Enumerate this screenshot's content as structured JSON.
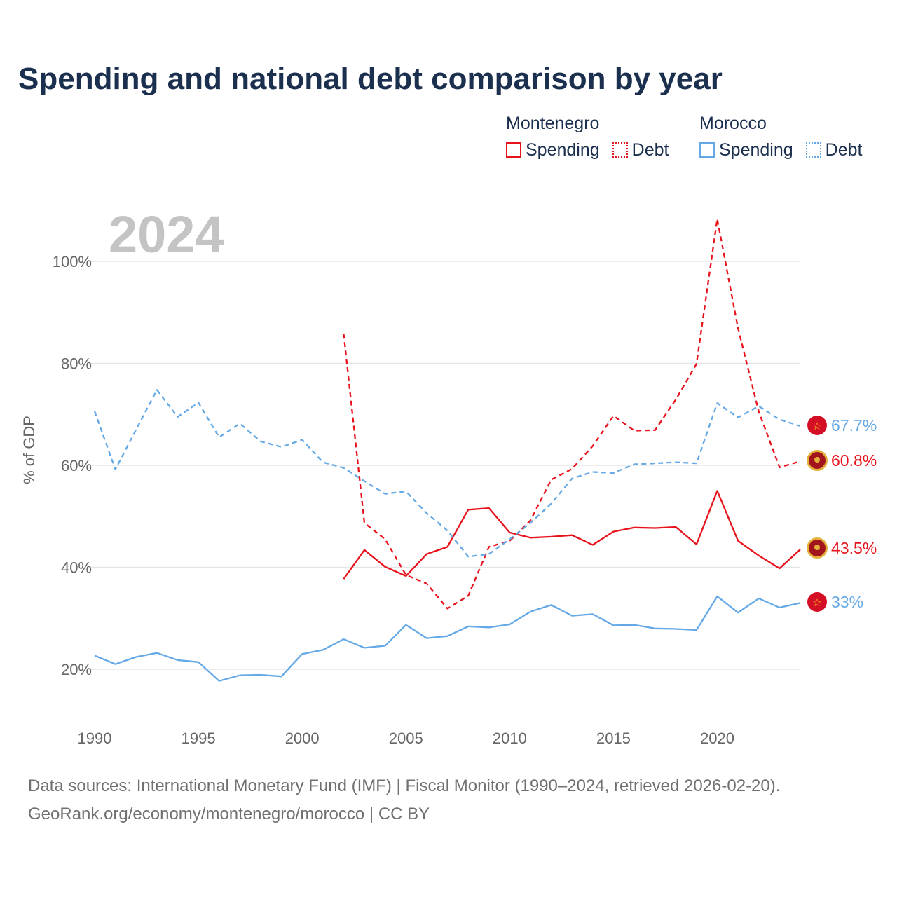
{
  "title": "Spending and national debt comparison by year",
  "year_label": "2024",
  "y_axis_title": "% of GDP",
  "colors": {
    "montenegro": "#e8121c",
    "morocco": "#64a8e6",
    "grid": "#e6e6e6",
    "axis_text": "#666666"
  },
  "legend": {
    "groups": [
      {
        "country": "Montenegro",
        "spending": "Spending",
        "debt": "Debt"
      },
      {
        "country": "Morocco",
        "spending": "Spending",
        "debt": "Debt"
      }
    ]
  },
  "end_labels": {
    "morocco_debt": "67.7%",
    "montenegro_debt": "60.8%",
    "montenegro_spending": "43.5%",
    "morocco_spending": "33%"
  },
  "source": {
    "line1": "Data sources: International Monetary Fund (IMF) | Fiscal Monitor (1990–2024, retrieved 2026-02-20).",
    "line2": "GeoRank.org/economy/montenegro/morocco | CC BY"
  },
  "chart_data": {
    "type": "line",
    "title": "Spending and national debt comparison by year",
    "ylabel": "% of GDP",
    "xlim": [
      1990,
      2024
    ],
    "ylim": [
      10,
      115
    ],
    "x_ticks": [
      1990,
      1995,
      2000,
      2005,
      2010,
      2015,
      2020
    ],
    "x_tick_labels": [
      "1990",
      "1995",
      "2000",
      "2005",
      "2010",
      "2015",
      "2020"
    ],
    "y_ticks": [
      20,
      40,
      60,
      80,
      100
    ],
    "y_tick_labels": [
      "20%",
      "40%",
      "60%",
      "80%",
      "100%"
    ],
    "series": [
      {
        "name": "Montenegro Spending",
        "country": "Montenegro",
        "kind": "Spending",
        "style": "solid",
        "color": "#e8121c",
        "x": [
          2002,
          2003,
          2004,
          2005,
          2006,
          2007,
          2008,
          2009,
          2010,
          2011,
          2012,
          2013,
          2014,
          2015,
          2016,
          2017,
          2018,
          2019,
          2020,
          2021,
          2022,
          2023,
          2024
        ],
        "values": [
          37.7,
          43.4,
          40.1,
          38.3,
          42.6,
          44.0,
          51.3,
          51.6,
          46.8,
          45.8,
          46.0,
          46.3,
          44.4,
          47.0,
          47.8,
          47.7,
          47.9,
          44.5,
          55.0,
          45.2,
          42.3,
          39.8,
          43.5
        ]
      },
      {
        "name": "Montenegro Debt",
        "country": "Montenegro",
        "kind": "Debt",
        "style": "dashed",
        "color": "#e8121c",
        "x": [
          2002,
          2003,
          2004,
          2005,
          2006,
          2007,
          2008,
          2009,
          2010,
          2011,
          2012,
          2013,
          2014,
          2015,
          2016,
          2017,
          2018,
          2019,
          2020,
          2021,
          2022,
          2023,
          2024
        ],
        "values": [
          85.8,
          48.7,
          45.5,
          38.5,
          36.8,
          31.9,
          34.4,
          44.0,
          45.2,
          49.2,
          57.2,
          59.3,
          63.8,
          69.7,
          66.8,
          66.9,
          72.9,
          79.9,
          108.3,
          86.9,
          70.5,
          59.6,
          60.8
        ]
      },
      {
        "name": "Morocco Spending",
        "country": "Morocco",
        "kind": "Spending",
        "style": "solid",
        "color": "#64a8e6",
        "x": [
          1990,
          1991,
          1992,
          1993,
          1994,
          1995,
          1996,
          1997,
          1998,
          1999,
          2000,
          2001,
          2002,
          2003,
          2004,
          2005,
          2006,
          2007,
          2008,
          2009,
          2010,
          2011,
          2012,
          2013,
          2014,
          2015,
          2016,
          2017,
          2018,
          2019,
          2020,
          2021,
          2022,
          2023,
          2024
        ],
        "values": [
          22.7,
          21.0,
          22.4,
          23.2,
          21.8,
          21.4,
          17.7,
          18.8,
          18.9,
          18.6,
          23.0,
          23.8,
          25.9,
          24.2,
          24.6,
          28.7,
          26.1,
          26.5,
          28.4,
          28.2,
          28.8,
          31.3,
          32.6,
          30.5,
          30.8,
          28.6,
          28.7,
          28.0,
          27.9,
          27.7,
          34.3,
          31.1,
          33.9,
          32.1,
          33.0
        ]
      },
      {
        "name": "Morocco Debt",
        "country": "Morocco",
        "kind": "Debt",
        "style": "dashed",
        "color": "#64a8e6",
        "x": [
          1990,
          1991,
          1992,
          1993,
          1994,
          1995,
          1996,
          1997,
          1998,
          1999,
          2000,
          2001,
          2002,
          2003,
          2004,
          2005,
          2006,
          2007,
          2008,
          2009,
          2010,
          2011,
          2012,
          2013,
          2014,
          2015,
          2016,
          2017,
          2018,
          2019,
          2020,
          2021,
          2022,
          2023,
          2024
        ],
        "values": [
          70.6,
          59.2,
          67.0,
          74.8,
          69.5,
          72.3,
          65.5,
          68.2,
          64.7,
          63.6,
          65.0,
          60.6,
          59.5,
          56.9,
          54.4,
          54.9,
          50.6,
          47.2,
          42.1,
          42.6,
          45.5,
          48.7,
          52.5,
          57.4,
          58.7,
          58.5,
          60.2,
          60.4,
          60.6,
          60.4,
          72.2,
          69.4,
          71.6,
          69.0,
          67.7
        ]
      }
    ]
  }
}
